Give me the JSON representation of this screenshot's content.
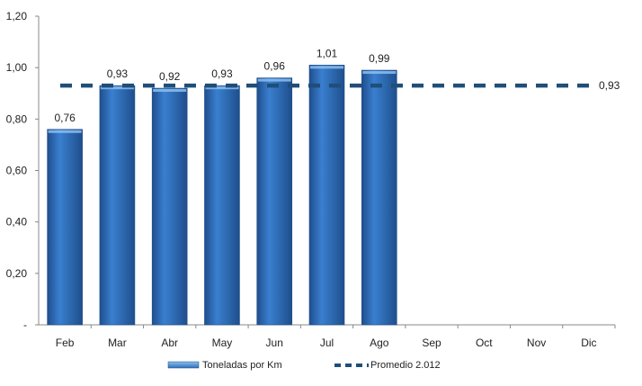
{
  "chart_data": {
    "type": "bar",
    "categories": [
      "Feb",
      "Mar",
      "Abr",
      "May",
      "Jun",
      "Jul",
      "Ago",
      "Sep",
      "Oct",
      "Nov",
      "Dic"
    ],
    "series": [
      {
        "name": "Toneladas por Km",
        "type": "bar",
        "values": [
          0.76,
          0.93,
          0.92,
          0.93,
          0.96,
          1.01,
          0.99,
          null,
          null,
          null,
          null
        ],
        "data_labels": [
          "0,76",
          "0,93",
          "0,92",
          "0,93",
          "0,96",
          "1,01",
          "0,99",
          "",
          "",
          "",
          ""
        ]
      },
      {
        "name": "Promedio 2.012",
        "type": "line",
        "style": "dashed",
        "value": 0.93,
        "data_label": "0,93"
      }
    ],
    "y_ticks": [
      {
        "value": 0,
        "label": "-"
      },
      {
        "value": 0.2,
        "label": "0,20"
      },
      {
        "value": 0.4,
        "label": "0,40"
      },
      {
        "value": 0.6,
        "label": "0,60"
      },
      {
        "value": 0.8,
        "label": "0,80"
      },
      {
        "value": 1.0,
        "label": "1,00"
      },
      {
        "value": 1.2,
        "label": "1,20"
      }
    ],
    "ylim": [
      0,
      1.2
    ],
    "title": "",
    "xlabel": "",
    "ylabel": "",
    "grid": false,
    "legend_position": "bottom",
    "colors": {
      "bar": "#2f6db5",
      "bar_light": "#5b97dc",
      "bar_dark": "#1f4e8c",
      "line": "#1f4e79",
      "axis": "#888888"
    }
  }
}
